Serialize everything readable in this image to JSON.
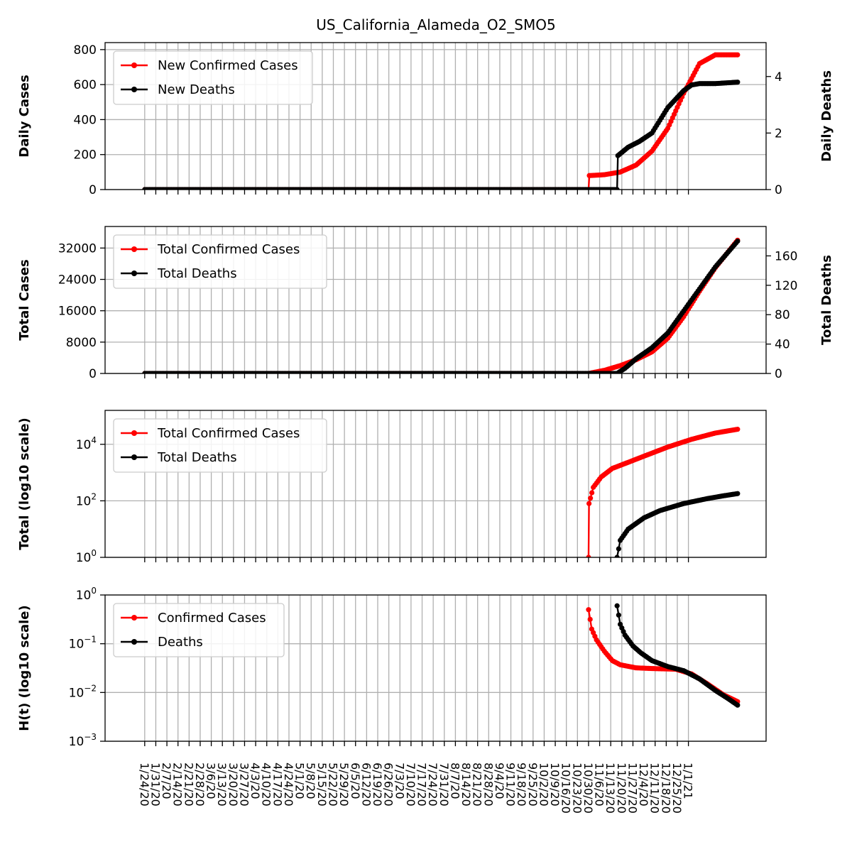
{
  "figure_title": "US_California_Alameda_O2_SMO5",
  "x_ticks": [
    "1/24/20",
    "1/31/20",
    "2/7/20",
    "2/14/20",
    "2/21/20",
    "2/28/20",
    "3/6/20",
    "3/13/20",
    "3/20/20",
    "3/27/20",
    "4/3/20",
    "4/10/20",
    "4/17/20",
    "4/24/20",
    "5/1/20",
    "5/8/20",
    "5/15/20",
    "5/22/20",
    "5/29/20",
    "6/5/20",
    "6/12/20",
    "6/19/20",
    "6/26/20",
    "7/3/20",
    "7/10/20",
    "7/17/20",
    "7/24/20",
    "7/31/20",
    "8/7/20",
    "8/14/20",
    "8/21/20",
    "8/28/20",
    "9/4/20",
    "9/11/20",
    "9/18/20",
    "9/25/20",
    "10/2/20",
    "10/9/20",
    "10/16/20",
    "10/23/20",
    "10/30/20",
    "11/6/20",
    "11/13/20",
    "11/20/20",
    "11/27/20",
    "12/4/20",
    "12/11/20",
    "12/18/20",
    "12/25/20",
    "1/1/21"
  ],
  "colors": {
    "cases": "#ff0000",
    "deaths": "#000000",
    "grid": "#b0b0b0"
  },
  "chart_data": [
    {
      "type": "line",
      "panel": "daily",
      "ylabel": "Daily Cases",
      "ylabel_right": "Daily Deaths",
      "ylim": [
        0,
        840
      ],
      "yticks": [
        "0",
        "200",
        "400",
        "600",
        "800"
      ],
      "ylim_right": [
        0,
        5.2
      ],
      "yticks_right": [
        "0",
        "2",
        "4"
      ],
      "legend": "top-left",
      "grid": true,
      "series": [
        {
          "name": "New Confirmed Cases",
          "color": "#ff0000",
          "axis": "left",
          "points": [
            [
              0,
              0
            ],
            [
              280,
              0
            ],
            [
              280.5,
              80
            ],
            [
              290,
              85
            ],
            [
              300,
              100
            ],
            [
              310,
              140
            ],
            [
              320,
              220
            ],
            [
              330,
              350
            ],
            [
              340,
              550
            ],
            [
              350,
              720
            ],
            [
              360,
              770
            ],
            [
              370,
              770
            ],
            [
              374,
              770
            ]
          ]
        },
        {
          "name": "New Deaths",
          "color": "#000000",
          "axis": "right",
          "points": [
            [
              0,
              0
            ],
            [
              298,
              0
            ],
            [
              298.5,
              1.2
            ],
            [
              305,
              1.5
            ],
            [
              312,
              1.7
            ],
            [
              320,
              2.0
            ],
            [
              330,
              2.9
            ],
            [
              340,
              3.5
            ],
            [
              345,
              3.7
            ],
            [
              350,
              3.75
            ],
            [
              360,
              3.75
            ],
            [
              374,
              3.8
            ]
          ]
        }
      ]
    },
    {
      "type": "line",
      "panel": "total",
      "ylabel": "Total Cases",
      "ylabel_right": "Total Deaths",
      "ylim": [
        0,
        37500
      ],
      "yticks": [
        "0",
        "8000",
        "16000",
        "24000",
        "32000"
      ],
      "ylim_right": [
        0,
        200
      ],
      "yticks_right": [
        "0",
        "40",
        "80",
        "120",
        "160"
      ],
      "legend": "top-left",
      "grid": true,
      "series": [
        {
          "name": "Total Confirmed Cases",
          "color": "#ff0000",
          "axis": "left",
          "points": [
            [
              0,
              0
            ],
            [
              280,
              0
            ],
            [
              290,
              800
            ],
            [
              300,
              2000
            ],
            [
              310,
              3500
            ],
            [
              320,
              5500
            ],
            [
              330,
              9000
            ],
            [
              340,
              14500
            ],
            [
              350,
              21000
            ],
            [
              360,
              27000
            ],
            [
              374,
              34000
            ]
          ]
        },
        {
          "name": "Total Deaths",
          "color": "#000000",
          "axis": "right",
          "points": [
            [
              0,
              0
            ],
            [
              298,
              0
            ],
            [
              303,
              7
            ],
            [
              310,
              20
            ],
            [
              320,
              35
            ],
            [
              330,
              55
            ],
            [
              340,
              85
            ],
            [
              350,
              115
            ],
            [
              360,
              145
            ],
            [
              370,
              170
            ],
            [
              374,
              180
            ]
          ]
        }
      ]
    },
    {
      "type": "line",
      "panel": "log_total",
      "ylabel": "Total (log10 scale)",
      "yscale": "log",
      "ylim_log10": [
        0,
        5.2
      ],
      "yticks": [
        "10^0",
        "10^2",
        "10^4"
      ],
      "legend": "top-left",
      "grid": true,
      "series": [
        {
          "name": "Total Confirmed Cases",
          "color": "#ff0000",
          "points": [
            [
              280,
              1
            ],
            [
              280.3,
              80
            ],
            [
              283,
              300
            ],
            [
              288,
              700
            ],
            [
              295,
              1400
            ],
            [
              305,
              2300
            ],
            [
              315,
              3800
            ],
            [
              330,
              8000
            ],
            [
              345,
              15000
            ],
            [
              360,
              25000
            ],
            [
              374,
              34000
            ]
          ]
        },
        {
          "name": "Total Deaths",
          "color": "#000000",
          "points": [
            [
              298,
              1
            ],
            [
              300,
              4
            ],
            [
              305,
              10
            ],
            [
              315,
              25
            ],
            [
              325,
              45
            ],
            [
              340,
              80
            ],
            [
              355,
              120
            ],
            [
              365,
              150
            ],
            [
              374,
              180
            ]
          ]
        }
      ]
    },
    {
      "type": "line",
      "panel": "hazard",
      "ylabel": "H(t) (log10 scale)",
      "yscale": "log",
      "ylim_log10": [
        -3,
        0
      ],
      "yticks": [
        "10^-3",
        "10^-2",
        "10^-1",
        "10^0"
      ],
      "legend": "top-left",
      "grid": true,
      "series": [
        {
          "name": "Confirmed Cases",
          "color": "#ff0000",
          "points": [
            [
              280,
              0.5
            ],
            [
              282,
              0.2
            ],
            [
              285,
              0.12
            ],
            [
              290,
              0.07
            ],
            [
              295,
              0.045
            ],
            [
              300,
              0.037
            ],
            [
              310,
              0.032
            ],
            [
              320,
              0.031
            ],
            [
              335,
              0.03
            ],
            [
              345,
              0.024
            ],
            [
              355,
              0.015
            ],
            [
              365,
              0.009
            ],
            [
              374,
              0.0065
            ]
          ]
        },
        {
          "name": "Deaths",
          "color": "#000000",
          "points": [
            [
              298,
              0.6
            ],
            [
              300,
              0.25
            ],
            [
              303,
              0.15
            ],
            [
              308,
              0.09
            ],
            [
              313,
              0.065
            ],
            [
              320,
              0.045
            ],
            [
              330,
              0.034
            ],
            [
              340,
              0.028
            ],
            [
              350,
              0.019
            ],
            [
              360,
              0.011
            ],
            [
              368,
              0.0075
            ],
            [
              374,
              0.0055
            ]
          ]
        }
      ]
    }
  ]
}
